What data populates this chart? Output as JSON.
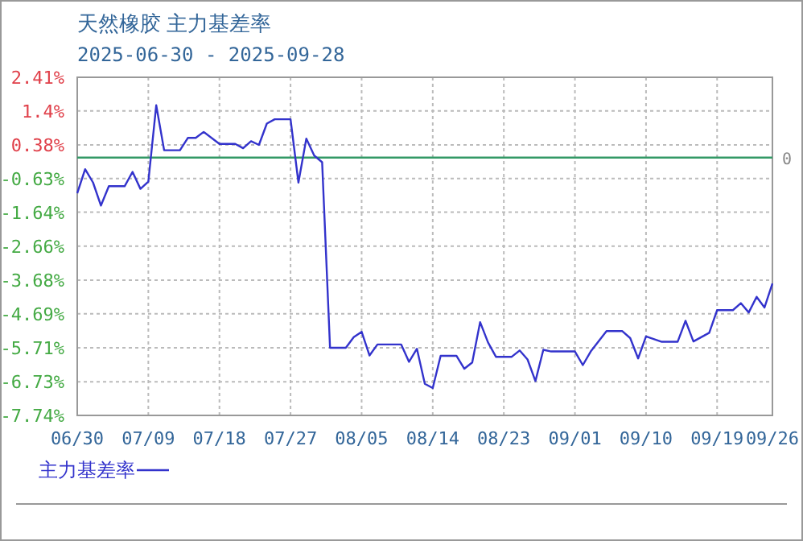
{
  "chart_data": {
    "type": "line",
    "title": "天然橡胶 主力基差率",
    "subtitle": "2025-06-30 - 2025-09-28",
    "xlim": [
      "2025-06-30",
      "2025-09-26"
    ],
    "xticks": [
      {
        "value": "2025-06-30",
        "label": "06/30"
      },
      {
        "value": "2025-07-09",
        "label": "07/09"
      },
      {
        "value": "2025-07-18",
        "label": "07/18"
      },
      {
        "value": "2025-07-27",
        "label": "07/27"
      },
      {
        "value": "2025-08-05",
        "label": "08/05"
      },
      {
        "value": "2025-08-14",
        "label": "08/14"
      },
      {
        "value": "2025-08-23",
        "label": "08/23"
      },
      {
        "value": "2025-09-01",
        "label": "09/01"
      },
      {
        "value": "2025-09-10",
        "label": "09/10"
      },
      {
        "value": "2025-09-19",
        "label": "09/19"
      },
      {
        "value": "2025-09-26",
        "label": "09/26"
      }
    ],
    "ylim": [
      -7.74,
      2.41
    ],
    "yticks": [
      {
        "value": 2.41,
        "label": "2.41%"
      },
      {
        "value": 1.4,
        "label": "1.4%"
      },
      {
        "value": 0.38,
        "label": "0.38%"
      },
      {
        "value": -0.63,
        "label": "-0.63%"
      },
      {
        "value": -1.64,
        "label": "-1.64%"
      },
      {
        "value": -2.66,
        "label": "-2.66%"
      },
      {
        "value": -3.68,
        "label": "-3.68%"
      },
      {
        "value": -4.69,
        "label": "-4.69%"
      },
      {
        "value": -5.71,
        "label": "-5.71%"
      },
      {
        "value": -6.73,
        "label": "-6.73%"
      },
      {
        "value": -7.74,
        "label": "-7.74%"
      }
    ],
    "grid": true,
    "legend": "bottom",
    "ref_lines": [
      {
        "axis": "y",
        "value": 0,
        "label": "0",
        "color": "#339966"
      }
    ],
    "series": [
      {
        "name": "主力基差率",
        "color": "#3333cc",
        "x": [
          "2025-06-30",
          "2025-07-01",
          "2025-07-02",
          "2025-07-03",
          "2025-07-04",
          "2025-07-06",
          "2025-07-07",
          "2025-07-08",
          "2025-07-09",
          "2025-07-10",
          "2025-07-11",
          "2025-07-13",
          "2025-07-14",
          "2025-07-15",
          "2025-07-16",
          "2025-07-18",
          "2025-07-20",
          "2025-07-21",
          "2025-07-22",
          "2025-07-23",
          "2025-07-24",
          "2025-07-25",
          "2025-07-27",
          "2025-07-28",
          "2025-07-29",
          "2025-07-30",
          "2025-07-31",
          "2025-08-01",
          "2025-08-03",
          "2025-08-04",
          "2025-08-05",
          "2025-08-06",
          "2025-08-07",
          "2025-08-10",
          "2025-08-11",
          "2025-08-12",
          "2025-08-13",
          "2025-08-14",
          "2025-08-15",
          "2025-08-17",
          "2025-08-18",
          "2025-08-19",
          "2025-08-20",
          "2025-08-21",
          "2025-08-22",
          "2025-08-24",
          "2025-08-25",
          "2025-08-26",
          "2025-08-27",
          "2025-08-28",
          "2025-08-29",
          "2025-09-01",
          "2025-09-02",
          "2025-09-03",
          "2025-09-05",
          "2025-09-07",
          "2025-09-08",
          "2025-09-09",
          "2025-09-10",
          "2025-09-12",
          "2025-09-14",
          "2025-09-15",
          "2025-09-16",
          "2025-09-18",
          "2025-09-19",
          "2025-09-21",
          "2025-09-22",
          "2025-09-23",
          "2025-09-24",
          "2025-09-25",
          "2025-09-26"
        ],
        "values": [
          -1.07,
          -0.35,
          -0.75,
          -1.44,
          -0.86,
          -0.86,
          -0.43,
          -0.94,
          -0.72,
          1.57,
          0.22,
          0.22,
          0.59,
          0.59,
          0.77,
          0.41,
          0.41,
          0.28,
          0.49,
          0.38,
          1.02,
          1.15,
          1.15,
          -0.75,
          0.57,
          0.06,
          -0.14,
          -5.71,
          -5.71,
          -5.39,
          -5.23,
          -5.94,
          -5.61,
          -5.61,
          -6.13,
          -5.74,
          -6.79,
          -6.92,
          -5.95,
          -5.95,
          -6.34,
          -6.15,
          -4.94,
          -5.55,
          -5.98,
          -5.98,
          -5.79,
          -6.06,
          -6.71,
          -5.77,
          -5.82,
          -5.82,
          -6.23,
          -5.82,
          -5.21,
          -5.21,
          -5.42,
          -6.03,
          -5.37,
          -5.53,
          -5.53,
          -4.9,
          -5.52,
          -5.26,
          -4.58,
          -4.58,
          -4.37,
          -4.65,
          -4.18,
          -4.5,
          -3.78
        ]
      }
    ]
  }
}
